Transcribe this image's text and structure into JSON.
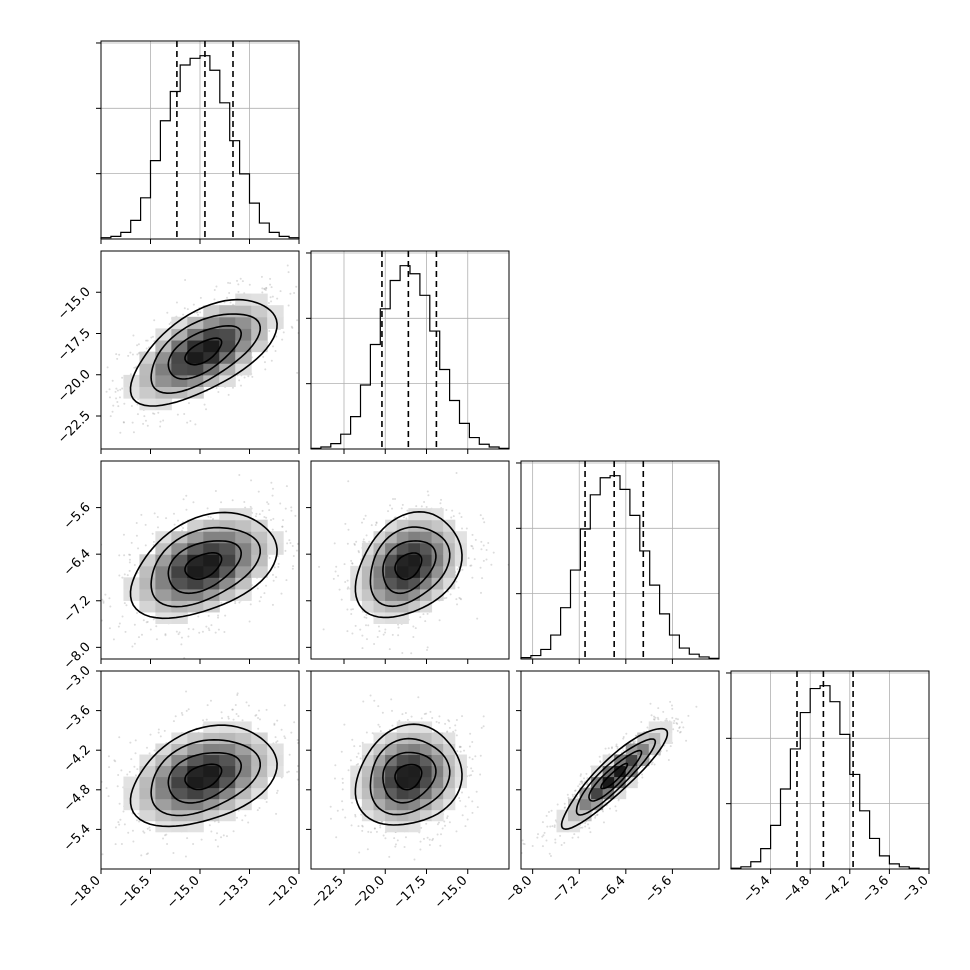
{
  "chart_data": {
    "type": "corner",
    "grid": true,
    "parameters": [
      {
        "range": [
          -18.0,
          -12.0
        ],
        "ticks": [
          "-18.0",
          "-16.5",
          "-15.0",
          "-13.5",
          "-12.0"
        ],
        "quantiles": [
          -15.7,
          -14.85,
          -14.0
        ],
        "hist_edges": [
          -18.0,
          -17.7,
          -17.4,
          -17.1,
          -16.8,
          -16.5,
          -16.2,
          -15.9,
          -15.6,
          -15.3,
          -15.0,
          -14.7,
          -14.4,
          -14.1,
          -13.8,
          -13.5,
          -13.2,
          -12.9,
          -12.6,
          -12.3,
          -12.0
        ],
        "hist_counts": [
          2,
          4,
          10,
          28,
          62,
          118,
          178,
          222,
          262,
          272,
          276,
          254,
          205,
          148,
          98,
          54,
          24,
          10,
          4,
          2
        ]
      },
      {
        "range": [
          -24.5,
          -12.5
        ],
        "ticks": [
          "-22.5",
          "-20.0",
          "-17.5",
          "-15.0"
        ],
        "quantiles": [
          -20.2,
          -18.6,
          -16.9
        ],
        "hist_edges": [
          -24.5,
          -23.9,
          -23.3,
          -22.7,
          -22.1,
          -21.5,
          -20.9,
          -20.3,
          -19.7,
          -19.1,
          -18.5,
          -17.9,
          -17.3,
          -16.7,
          -16.1,
          -15.5,
          -14.9,
          -14.3,
          -13.7,
          -13.1,
          -12.5
        ],
        "hist_counts": [
          1,
          3,
          8,
          22,
          48,
          95,
          155,
          208,
          250,
          272,
          260,
          228,
          175,
          118,
          72,
          38,
          17,
          7,
          3,
          1
        ]
      },
      {
        "range": [
          -8.2,
          -4.8
        ],
        "ticks": [
          "-8.0",
          "-7.2",
          "-6.4",
          "-5.6"
        ],
        "quantiles": [
          -7.1,
          -6.6,
          -6.1
        ],
        "hist_edges": [
          -8.2,
          -8.03,
          -7.86,
          -7.69,
          -7.52,
          -7.35,
          -7.18,
          -7.01,
          -6.84,
          -6.67,
          -6.5,
          -6.33,
          -6.16,
          -5.99,
          -5.82,
          -5.65,
          -5.48,
          -5.31,
          -5.14,
          -4.97,
          -4.8
        ],
        "hist_counts": [
          2,
          5,
          14,
          35,
          75,
          130,
          190,
          240,
          265,
          268,
          248,
          210,
          158,
          108,
          66,
          35,
          16,
          7,
          3,
          1
        ]
      },
      {
        "range": [
          -6.0,
          -3.0
        ],
        "ticks": [
          "-5.4",
          "-4.8",
          "-4.2",
          "-3.6",
          "-3.0"
        ],
        "quantiles": [
          -5.0,
          -4.6,
          -4.15
        ],
        "hist_edges": [
          -6.0,
          -5.85,
          -5.7,
          -5.55,
          -5.4,
          -5.25,
          -5.1,
          -4.95,
          -4.8,
          -4.65,
          -4.5,
          -4.35,
          -4.2,
          -4.05,
          -3.9,
          -3.75,
          -3.6,
          -3.45,
          -3.3,
          -3.15,
          -3.0
        ],
        "hist_counts": [
          1,
          3,
          10,
          28,
          60,
          110,
          165,
          215,
          248,
          252,
          230,
          185,
          130,
          80,
          42,
          18,
          7,
          3,
          1,
          0
        ]
      }
    ],
    "pairs": [
      {
        "row": 1,
        "col": 0,
        "mean": [
          -14.9,
          -18.6
        ],
        "sd": [
          1.1,
          1.6
        ],
        "rho": 0.6
      },
      {
        "row": 2,
        "col": 0,
        "mean": [
          -14.9,
          -6.6
        ],
        "sd": [
          1.1,
          0.45
        ],
        "rho": 0.4
      },
      {
        "row": 2,
        "col": 1,
        "mean": [
          -18.6,
          -6.6
        ],
        "sd": [
          1.6,
          0.45
        ],
        "rho": 0.3
      },
      {
        "row": 3,
        "col": 0,
        "mean": [
          -14.9,
          -4.6
        ],
        "sd": [
          1.1,
          0.38
        ],
        "rho": 0.35
      },
      {
        "row": 3,
        "col": 1,
        "mean": [
          -18.6,
          -4.6
        ],
        "sd": [
          1.6,
          0.38
        ],
        "rho": 0.15
      },
      {
        "row": 3,
        "col": 2,
        "mean": [
          -6.6,
          -4.6
        ],
        "sd": [
          0.45,
          0.38
        ],
        "rho": 0.9
      }
    ],
    "contour_levels_sigma": [
      0.5,
      1.0,
      1.5,
      2.0
    ]
  }
}
